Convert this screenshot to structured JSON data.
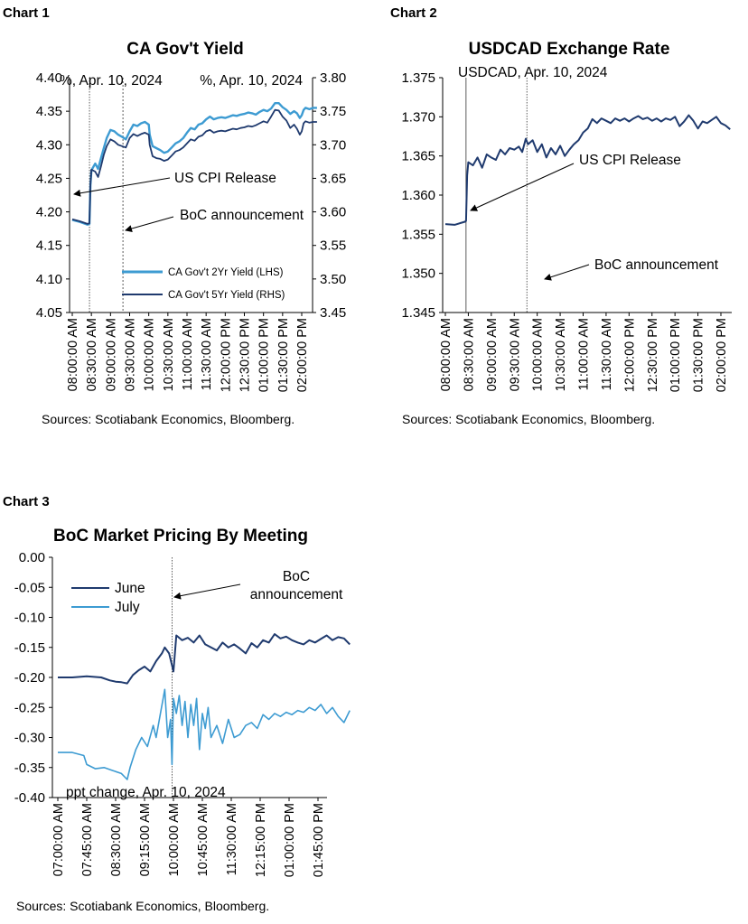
{
  "colors": {
    "light_blue": "#3d9bd2",
    "dark_blue": "#1f3a6e",
    "axis": "#000000"
  },
  "chart_data": [
    {
      "label": "Chart 1",
      "type": "line",
      "title": "CA Gov't Yield",
      "left_unit_label": "%, Apr. 10, 2024",
      "right_unit_label": "%, Apr. 10, 2024",
      "ylim_left": [
        4.05,
        4.4
      ],
      "ylim_right": [
        3.45,
        3.8
      ],
      "y_ticks_left": [
        "4.40",
        "4.35",
        "4.30",
        "4.25",
        "4.20",
        "4.15",
        "4.10",
        "4.05"
      ],
      "y_ticks_right": [
        "3.80",
        "3.75",
        "3.70",
        "3.65",
        "3.60",
        "3.55",
        "3.50",
        "3.45"
      ],
      "x_ticks": [
        "08:00:00 AM",
        "08:30:00 AM",
        "09:00:00 AM",
        "09:30:00 AM",
        "10:00:00 AM",
        "10:30:00 AM",
        "11:00:00 AM",
        "11:30:00 AM",
        "12:00:00 PM",
        "12:30:00 PM",
        "01:00:00 PM",
        "01:30:00 PM",
        "02:00:00 PM"
      ],
      "vlines": [
        0.9,
        2.65
      ],
      "annotations": [
        "US CPI Release",
        "BoC announcement"
      ],
      "series": [
        {
          "name": "CA Gov't 2Yr Yield (LHS)",
          "axis": "left",
          "color": "#3d9bd2",
          "x": [
            0,
            0.4,
            0.8,
            0.9,
            0.95,
            1.0,
            1.2,
            1.35,
            1.5,
            1.65,
            1.8,
            2.0,
            2.2,
            2.4,
            2.6,
            2.8,
            3.0,
            3.2,
            3.4,
            3.6,
            3.8,
            4.0,
            4.05,
            4.2,
            4.4,
            4.6,
            4.8,
            5.0,
            5.2,
            5.4,
            5.6,
            5.8,
            6.0,
            6.2,
            6.4,
            6.6,
            6.8,
            7.0,
            7.2,
            7.4,
            7.6,
            7.8,
            8.0,
            8.2,
            8.4,
            8.6,
            8.8,
            9.0,
            9.2,
            9.4,
            9.6,
            9.8,
            10.0,
            10.2,
            10.4,
            10.6,
            10.8,
            11.0,
            11.2,
            11.4,
            11.6,
            11.75,
            11.9,
            12.0,
            12.1,
            12.2,
            12.4,
            12.6,
            12.8
          ],
          "values": [
            4.188,
            4.185,
            4.181,
            4.182,
            4.24,
            4.262,
            4.272,
            4.264,
            4.28,
            4.295,
            4.31,
            4.322,
            4.32,
            4.315,
            4.312,
            4.308,
            4.32,
            4.33,
            4.328,
            4.332,
            4.334,
            4.33,
            4.315,
            4.298,
            4.295,
            4.292,
            4.288,
            4.29,
            4.296,
            4.302,
            4.305,
            4.31,
            4.318,
            4.325,
            4.323,
            4.33,
            4.332,
            4.338,
            4.342,
            4.338,
            4.34,
            4.341,
            4.34,
            4.342,
            4.344,
            4.343,
            4.345,
            4.346,
            4.348,
            4.347,
            4.345,
            4.349,
            4.352,
            4.35,
            4.354,
            4.362,
            4.362,
            4.356,
            4.352,
            4.346,
            4.35,
            4.347,
            4.34,
            4.344,
            4.352,
            4.355,
            4.353,
            4.355,
            4.355
          ]
        },
        {
          "name": "CA Gov't 5Yr Yield (RHS)",
          "axis": "right",
          "color": "#1f3a6e",
          "x": [
            0,
            0.4,
            0.8,
            0.9,
            0.95,
            1.0,
            1.2,
            1.35,
            1.5,
            1.65,
            1.8,
            2.0,
            2.2,
            2.4,
            2.6,
            2.8,
            3.0,
            3.2,
            3.4,
            3.6,
            3.8,
            4.0,
            4.05,
            4.2,
            4.4,
            4.6,
            4.8,
            5.0,
            5.2,
            5.4,
            5.6,
            5.8,
            6.0,
            6.2,
            6.4,
            6.6,
            6.8,
            7.0,
            7.2,
            7.4,
            7.6,
            7.8,
            8.0,
            8.2,
            8.4,
            8.6,
            8.8,
            9.0,
            9.2,
            9.4,
            9.6,
            9.8,
            10.0,
            10.2,
            10.4,
            10.6,
            10.8,
            11.0,
            11.2,
            11.4,
            11.6,
            11.75,
            11.9,
            12.0,
            12.1,
            12.2,
            12.4,
            12.6,
            12.8
          ],
          "values": [
            3.589,
            3.586,
            3.582,
            3.583,
            3.64,
            3.663,
            3.66,
            3.652,
            3.668,
            3.685,
            3.698,
            3.708,
            3.705,
            3.7,
            3.698,
            3.696,
            3.71,
            3.716,
            3.713,
            3.716,
            3.718,
            3.715,
            3.7,
            3.683,
            3.68,
            3.679,
            3.676,
            3.678,
            3.684,
            3.69,
            3.692,
            3.696,
            3.702,
            3.708,
            3.706,
            3.712,
            3.714,
            3.72,
            3.722,
            3.718,
            3.72,
            3.721,
            3.72,
            3.722,
            3.724,
            3.723,
            3.725,
            3.726,
            3.728,
            3.727,
            3.729,
            3.732,
            3.735,
            3.733,
            3.742,
            3.752,
            3.751,
            3.742,
            3.736,
            3.725,
            3.73,
            3.724,
            3.715,
            3.72,
            3.732,
            3.735,
            3.733,
            3.734,
            3.734
          ]
        }
      ]
    },
    {
      "label": "Chart 2",
      "type": "line",
      "title": "USDCAD Exchange Rate",
      "unit_label": "USDCAD, Apr. 10, 2024",
      "ylim": [
        1.345,
        1.375
      ],
      "y_ticks": [
        "1.375",
        "1.370",
        "1.365",
        "1.360",
        "1.355",
        "1.350",
        "1.345"
      ],
      "x_ticks": [
        "08:00:00 AM",
        "08:30:00 AM",
        "09:00:00 AM",
        "09:30:00 AM",
        "10:00:00 AM",
        "10:30:00 AM",
        "11:00:00 AM",
        "11:30:00 AM",
        "12:00:00 PM",
        "12:30:00 PM",
        "01:00:00 PM",
        "01:30:00 PM",
        "02:00:00 PM"
      ],
      "vlines": [
        0.9,
        3.55
      ],
      "annotations": [
        "US CPI Release",
        "BoC announcement"
      ],
      "series": [
        {
          "name": "USDCAD",
          "color": "#1f3a6e",
          "x": [
            0,
            0.4,
            0.85,
            0.9,
            0.95,
            1.0,
            1.2,
            1.4,
            1.6,
            1.8,
            2.0,
            2.2,
            2.4,
            2.6,
            2.8,
            3.0,
            3.2,
            3.35,
            3.5,
            3.6,
            3.8,
            4.0,
            4.2,
            4.4,
            4.6,
            4.8,
            5.0,
            5.2,
            5.4,
            5.6,
            5.8,
            6.0,
            6.2,
            6.4,
            6.6,
            6.8,
            7.0,
            7.2,
            7.4,
            7.6,
            7.8,
            8.0,
            8.2,
            8.4,
            8.6,
            8.8,
            9.0,
            9.2,
            9.4,
            9.6,
            9.8,
            10.0,
            10.2,
            10.4,
            10.6,
            10.8,
            11.0,
            11.2,
            11.4,
            11.6,
            11.8,
            12.0,
            12.2,
            12.4
          ],
          "values": [
            1.3563,
            1.3562,
            1.3566,
            1.3567,
            1.3625,
            1.3642,
            1.3638,
            1.3648,
            1.3635,
            1.3652,
            1.3648,
            1.3645,
            1.3658,
            1.3652,
            1.366,
            1.3658,
            1.3662,
            1.3655,
            1.3672,
            1.3665,
            1.367,
            1.3655,
            1.3665,
            1.3648,
            1.366,
            1.3652,
            1.3663,
            1.365,
            1.3658,
            1.3665,
            1.367,
            1.368,
            1.3685,
            1.3697,
            1.3692,
            1.3698,
            1.3695,
            1.3692,
            1.3698,
            1.3695,
            1.3698,
            1.3694,
            1.3698,
            1.3701,
            1.3697,
            1.3699,
            1.3695,
            1.3698,
            1.3694,
            1.3698,
            1.3696,
            1.37,
            1.3688,
            1.3694,
            1.3702,
            1.3695,
            1.3685,
            1.3694,
            1.3692,
            1.3696,
            1.37,
            1.3692,
            1.3689,
            1.3684
          ]
        }
      ]
    },
    {
      "label": "Chart 3",
      "type": "line",
      "title": "BoC Market Pricing  By Meeting",
      "unit_label": "ppt change, Apr. 10, 2024",
      "ylim": [
        -0.4,
        0.0
      ],
      "y_ticks": [
        "0.00",
        "-0.05",
        "-0.10",
        "-0.15",
        "-0.20",
        "-0.25",
        "-0.30",
        "-0.35",
        "-0.40"
      ],
      "x_ticks": [
        "07:00:00 AM",
        "07:45:00 AM",
        "08:30:00 AM",
        "09:15:00 AM",
        "10:00:00 AM",
        "10:45:00 AM",
        "11:30:00 AM",
        "12:15:00 PM",
        "01:00:00 PM",
        "01:45:00 PM"
      ],
      "vlines": [
        3.95
      ],
      "annotations": [
        "BoC",
        "announcement"
      ],
      "series": [
        {
          "name": "June",
          "color": "#1f3a6e",
          "x": [
            0,
            0.5,
            1.0,
            1.5,
            1.8,
            2.0,
            2.2,
            2.4,
            2.6,
            2.8,
            3.0,
            3.2,
            3.4,
            3.6,
            3.7,
            3.85,
            3.95,
            4.0,
            4.1,
            4.3,
            4.5,
            4.7,
            4.9,
            5.1,
            5.3,
            5.5,
            5.7,
            5.9,
            6.1,
            6.3,
            6.5,
            6.7,
            6.9,
            7.1,
            7.3,
            7.5,
            7.7,
            7.9,
            8.1,
            8.3,
            8.5,
            8.7,
            8.9,
            9.1,
            9.3,
            9.5,
            9.7,
            9.9,
            10.1
          ],
          "values": [
            -0.2,
            -0.2,
            -0.198,
            -0.2,
            -0.205,
            -0.207,
            -0.208,
            -0.21,
            -0.196,
            -0.188,
            -0.182,
            -0.19,
            -0.173,
            -0.16,
            -0.15,
            -0.16,
            -0.18,
            -0.19,
            -0.13,
            -0.138,
            -0.134,
            -0.142,
            -0.13,
            -0.145,
            -0.15,
            -0.155,
            -0.142,
            -0.15,
            -0.145,
            -0.152,
            -0.16,
            -0.143,
            -0.15,
            -0.138,
            -0.142,
            -0.128,
            -0.135,
            -0.132,
            -0.138,
            -0.142,
            -0.145,
            -0.138,
            -0.142,
            -0.136,
            -0.13,
            -0.138,
            -0.133,
            -0.135,
            -0.145
          ]
        },
        {
          "name": "July",
          "color": "#3d9bd2",
          "x": [
            0,
            0.5,
            0.9,
            1.0,
            1.3,
            1.6,
            1.9,
            2.2,
            2.4,
            2.5,
            2.7,
            2.9,
            3.1,
            3.3,
            3.4,
            3.55,
            3.7,
            3.8,
            3.9,
            3.95,
            4.0,
            4.1,
            4.2,
            4.3,
            4.4,
            4.5,
            4.6,
            4.7,
            4.8,
            4.9,
            5.0,
            5.1,
            5.2,
            5.3,
            5.5,
            5.7,
            5.9,
            6.1,
            6.3,
            6.5,
            6.7,
            6.9,
            7.1,
            7.3,
            7.5,
            7.7,
            7.9,
            8.1,
            8.3,
            8.5,
            8.7,
            8.9,
            9.1,
            9.3,
            9.5,
            9.7,
            9.9,
            10.1
          ],
          "values": [
            -0.325,
            -0.325,
            -0.33,
            -0.345,
            -0.352,
            -0.35,
            -0.355,
            -0.36,
            -0.37,
            -0.35,
            -0.32,
            -0.3,
            -0.315,
            -0.28,
            -0.3,
            -0.26,
            -0.22,
            -0.3,
            -0.27,
            -0.345,
            -0.235,
            -0.26,
            -0.23,
            -0.28,
            -0.24,
            -0.3,
            -0.245,
            -0.28,
            -0.235,
            -0.32,
            -0.26,
            -0.285,
            -0.25,
            -0.3,
            -0.28,
            -0.31,
            -0.27,
            -0.3,
            -0.295,
            -0.28,
            -0.275,
            -0.285,
            -0.262,
            -0.27,
            -0.26,
            -0.265,
            -0.258,
            -0.262,
            -0.255,
            -0.258,
            -0.25,
            -0.255,
            -0.245,
            -0.26,
            -0.25,
            -0.265,
            -0.275,
            -0.255
          ]
        }
      ]
    }
  ],
  "sources": "Sources: Scotiabank Economics, Bloomberg."
}
